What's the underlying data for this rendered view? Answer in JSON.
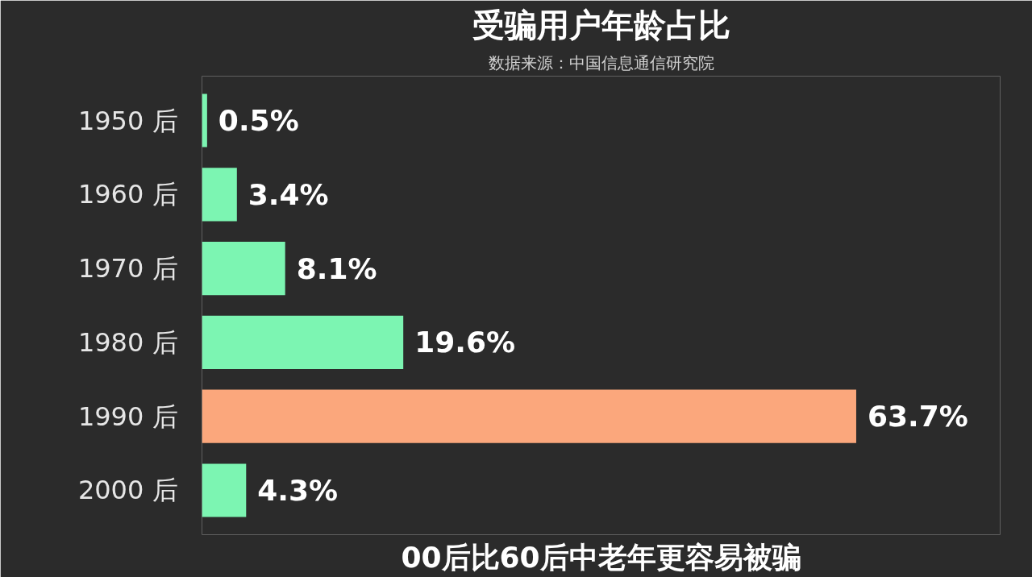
{
  "chart_data": {
    "type": "bar",
    "orientation": "horizontal",
    "title": "受骗用户年龄占比",
    "subtitle": "数据来源：中国信息通信研究院",
    "categories": [
      "1950 后",
      "1960 后",
      "1970 后",
      "1980 后",
      "1990 后",
      "2000 后"
    ],
    "values": [
      0.5,
      3.4,
      8.1,
      19.6,
      63.7,
      4.3
    ],
    "colors": [
      "#7cf5b2",
      "#7cf5b2",
      "#7cf5b2",
      "#7cf5b2",
      "#fba77c",
      "#7cf5b2"
    ],
    "value_labels": [
      "0.5%",
      "3.4%",
      "8.1%",
      "19.6%",
      "63.7%",
      "4.3%"
    ],
    "annotations": [
      "00后比60后中老年更容易被骗"
    ],
    "grid": false
  }
}
